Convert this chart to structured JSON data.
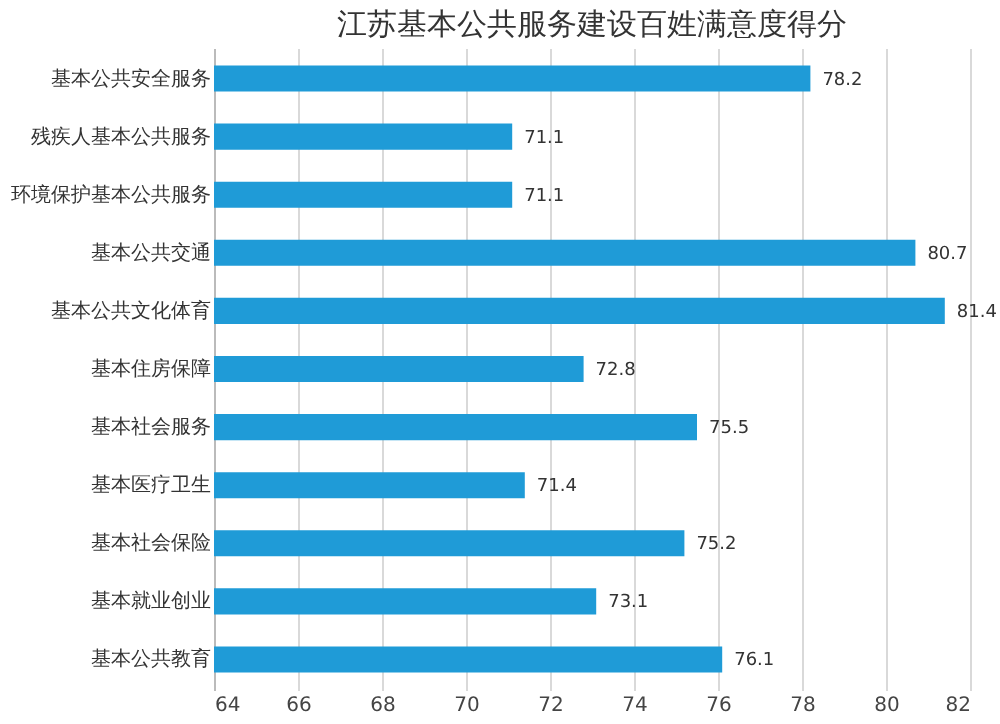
{
  "chart_data": {
    "type": "bar",
    "orientation": "horizontal",
    "title": "江苏基本公共服务建设百姓满意度得分",
    "categories": [
      "基本公共安全服务",
      "残疾人基本公共服务",
      "环境保护基本公共服务",
      "基本公共交通",
      "基本公共文化体育",
      "基本住房保障",
      "基本社会服务",
      "基本医疗卫生",
      "基本社会保险",
      "基本就业创业",
      "基本公共教育"
    ],
    "values": [
      78.2,
      71.1,
      71.1,
      80.7,
      81.4,
      72.8,
      75.5,
      71.4,
      75.2,
      73.1,
      76.1
    ],
    "color": "#1f9bd7",
    "xlim": [
      64,
      82
    ],
    "xticks": [
      64,
      66,
      68,
      70,
      72,
      74,
      76,
      78,
      80,
      82
    ],
    "grid": "x",
    "data_labels": true
  }
}
